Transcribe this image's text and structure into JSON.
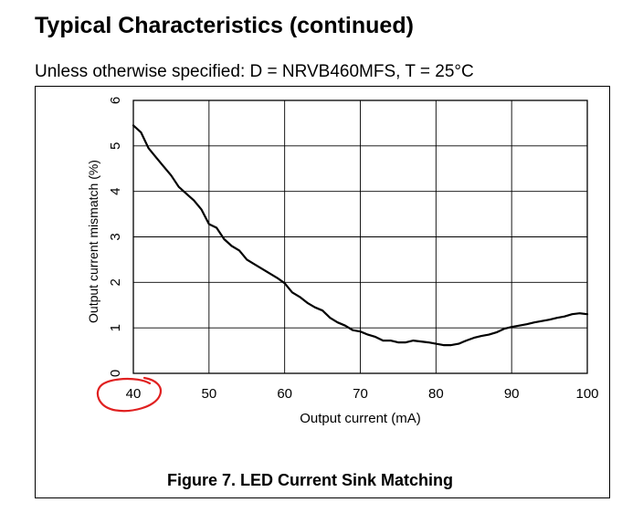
{
  "page": {
    "title": "Typical Characteristics (continued)",
    "subtitle": "Unless otherwise specified: D = NRVB460MFS, T = 25°C",
    "caption": "Figure 7. LED Current Sink Matching"
  },
  "annotation": {
    "shape": "red hand-drawn circle",
    "target_tick": "40",
    "color": "#e02020"
  },
  "chart_data": {
    "type": "line",
    "title": "",
    "xlabel": "Output current (mA)",
    "ylabel": "Output current mismatch (%)",
    "xlim": [
      40,
      100
    ],
    "ylim": [
      0,
      6
    ],
    "xticks": [
      "40",
      "50",
      "60",
      "70",
      "80",
      "90",
      "100"
    ],
    "yticks": [
      "0",
      "1",
      "2",
      "3",
      "4",
      "5",
      "6"
    ],
    "grid": true,
    "line_color": "#000000",
    "series": [
      {
        "x": [
          40,
          41,
          42,
          43,
          44,
          45,
          46,
          47,
          48,
          49,
          50,
          51,
          52,
          53,
          54,
          55,
          56,
          57,
          58,
          59,
          60,
          61,
          62,
          63,
          64,
          65,
          66,
          67,
          68,
          69,
          70,
          71,
          72,
          73,
          74,
          75,
          76,
          77,
          78,
          79,
          80,
          81,
          82,
          83,
          84,
          85,
          86,
          87,
          88,
          89,
          90,
          91,
          92,
          93,
          94,
          95,
          96,
          97,
          98,
          99,
          100
        ],
        "y": [
          5.45,
          5.3,
          4.95,
          4.75,
          4.55,
          4.35,
          4.1,
          3.95,
          3.8,
          3.6,
          3.28,
          3.2,
          2.95,
          2.8,
          2.7,
          2.5,
          2.4,
          2.3,
          2.2,
          2.1,
          1.98,
          1.78,
          1.68,
          1.55,
          1.45,
          1.38,
          1.22,
          1.12,
          1.05,
          0.95,
          0.92,
          0.85,
          0.8,
          0.72,
          0.72,
          0.68,
          0.68,
          0.72,
          0.7,
          0.68,
          0.65,
          0.62,
          0.62,
          0.65,
          0.72,
          0.78,
          0.82,
          0.85,
          0.9,
          0.98,
          1.02,
          1.05,
          1.08,
          1.12,
          1.15,
          1.18,
          1.22,
          1.25,
          1.3,
          1.32,
          1.3
        ]
      }
    ]
  }
}
